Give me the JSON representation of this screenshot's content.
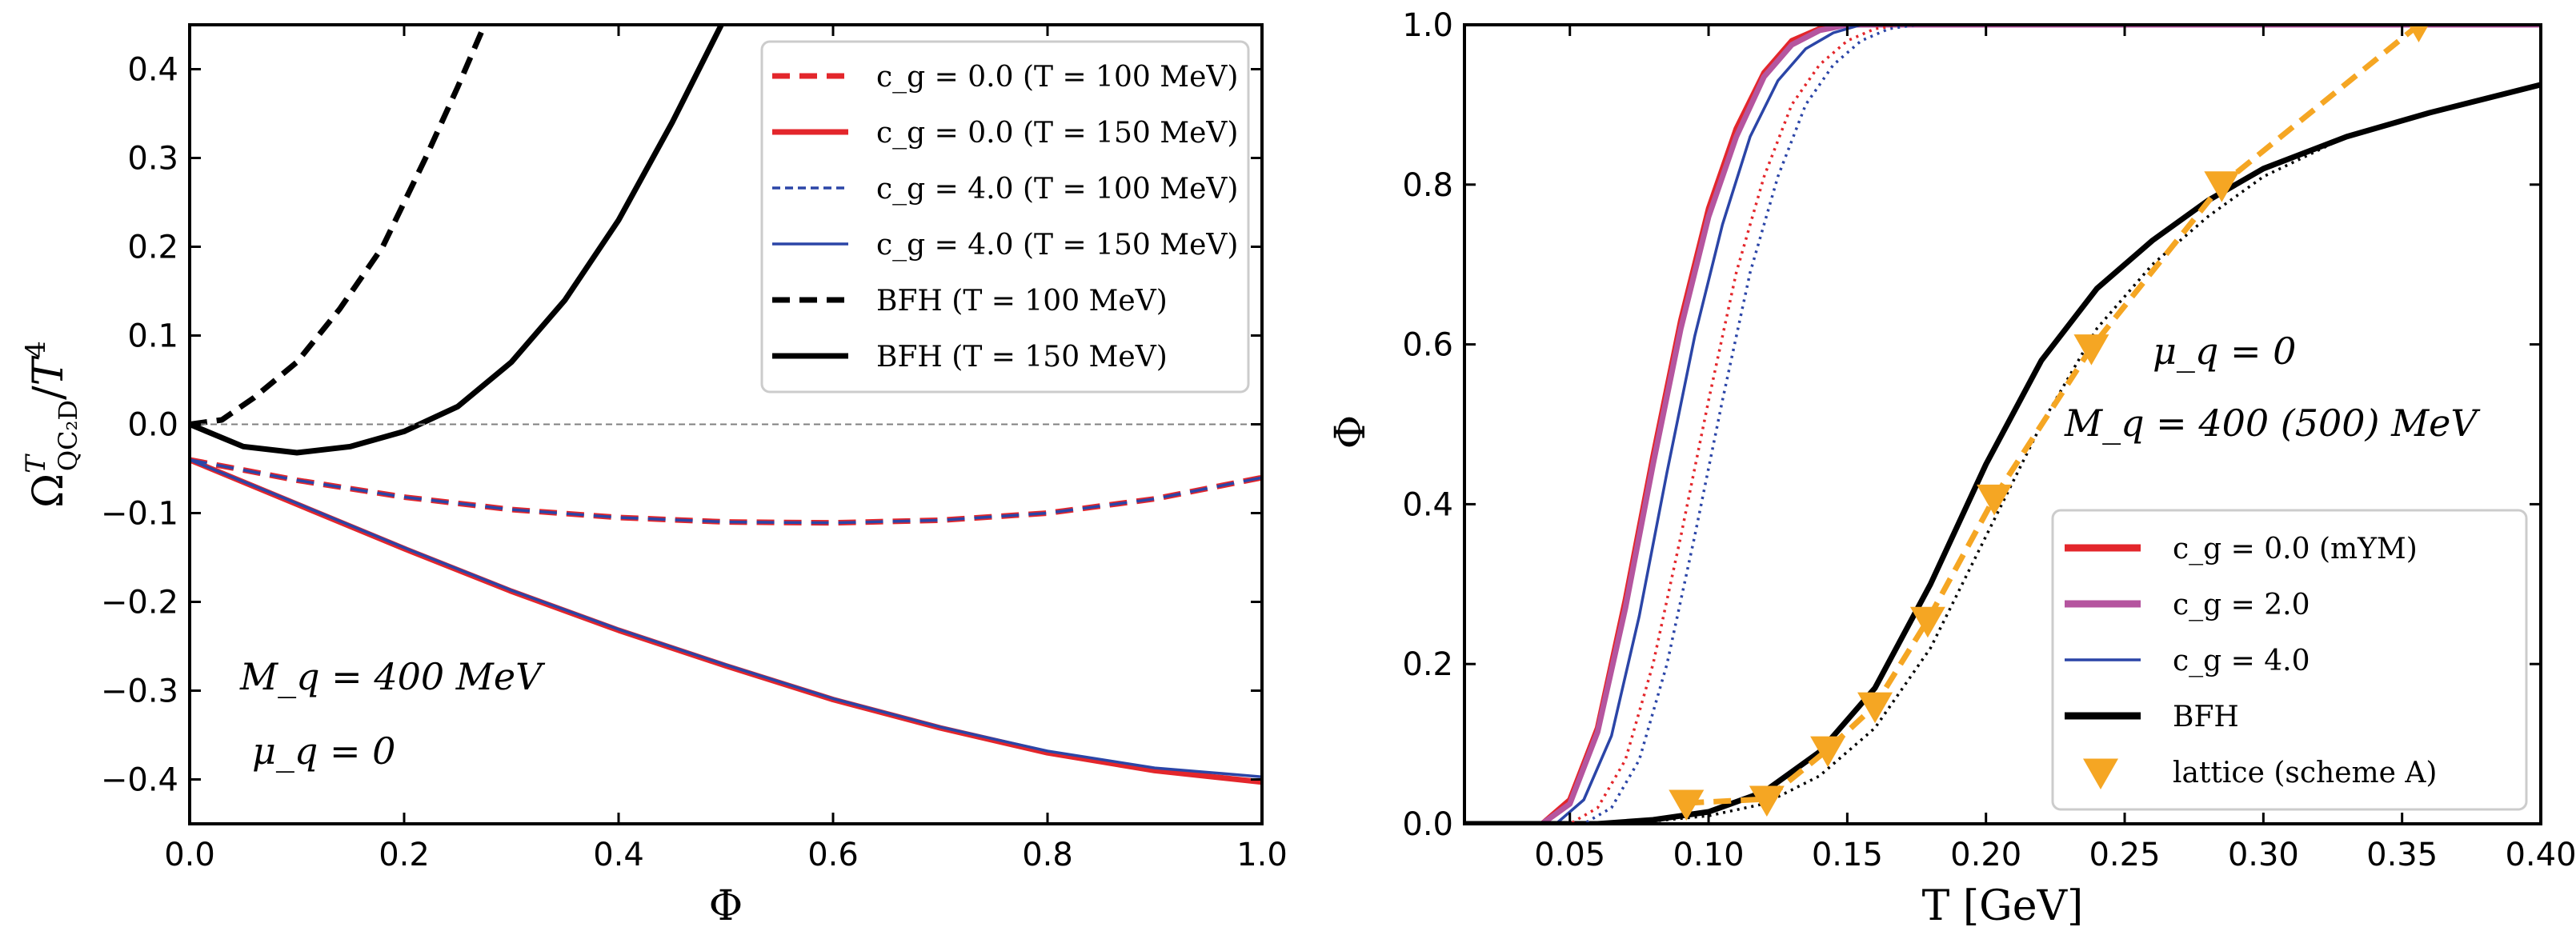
{
  "chart_data": [
    {
      "type": "line",
      "title": "",
      "xlabel": "Φ",
      "ylabel": "Ω^T_{QC₂D}/T⁴",
      "xlim": [
        0.0,
        1.0
      ],
      "ylim": [
        -0.45,
        0.45
      ],
      "xticks": [
        "0.0",
        "0.2",
        "0.4",
        "0.6",
        "0.8",
        "1.0"
      ],
      "yticks": [
        "−0.4",
        "−0.3",
        "−0.2",
        "−0.1",
        "0.0",
        "0.1",
        "0.2",
        "0.3",
        "0.4"
      ],
      "legend_position": "top-right",
      "annotations": [
        "M_q = 400 MeV",
        "μ_q = 0"
      ],
      "series": [
        {
          "name": "c_g = 0.0 (T = 100 MeV)",
          "color": "#e3262b",
          "style": "dashed",
          "x": [
            0,
            0.1,
            0.2,
            0.3,
            0.4,
            0.5,
            0.6,
            0.7,
            0.8,
            0.9,
            1.0
          ],
          "y": [
            -0.04,
            -0.063,
            -0.082,
            -0.096,
            -0.105,
            -0.11,
            -0.111,
            -0.108,
            -0.1,
            -0.084,
            -0.06
          ]
        },
        {
          "name": "c_g = 0.0 (T = 150 MeV)",
          "color": "#e3262b",
          "style": "solid",
          "x": [
            0,
            0.1,
            0.2,
            0.3,
            0.4,
            0.5,
            0.6,
            0.7,
            0.8,
            0.9,
            1.0
          ],
          "y": [
            -0.04,
            -0.09,
            -0.14,
            -0.188,
            -0.232,
            -0.272,
            -0.31,
            -0.342,
            -0.37,
            -0.39,
            -0.403
          ]
        },
        {
          "name": "c_g = 4.0 (T = 100 MeV)",
          "color": "#2b45a7",
          "style": "dashed",
          "x": [
            0,
            0.1,
            0.2,
            0.3,
            0.4,
            0.5,
            0.6,
            0.7,
            0.8,
            0.9,
            1.0
          ],
          "y": [
            -0.04,
            -0.063,
            -0.082,
            -0.096,
            -0.105,
            -0.11,
            -0.111,
            -0.108,
            -0.1,
            -0.084,
            -0.06
          ]
        },
        {
          "name": "c_g = 4.0 (T = 150 MeV)",
          "color": "#2b45a7",
          "style": "solid",
          "x": [
            0,
            0.1,
            0.2,
            0.3,
            0.4,
            0.5,
            0.6,
            0.7,
            0.8,
            0.9,
            1.0
          ],
          "y": [
            -0.04,
            -0.089,
            -0.139,
            -0.187,
            -0.231,
            -0.271,
            -0.309,
            -0.341,
            -0.368,
            -0.387,
            -0.397
          ]
        },
        {
          "name": "BFH (T = 100 MeV)",
          "color": "#000000",
          "style": "dashed",
          "x": [
            0,
            0.03,
            0.06,
            0.1,
            0.14,
            0.18,
            0.22,
            0.25,
            0.275
          ],
          "y": [
            0.0,
            0.005,
            0.03,
            0.07,
            0.13,
            0.2,
            0.3,
            0.38,
            0.45
          ]
        },
        {
          "name": "BFH (T = 150 MeV)",
          "color": "#000000",
          "style": "solid",
          "x": [
            0,
            0.05,
            0.1,
            0.15,
            0.2,
            0.25,
            0.3,
            0.35,
            0.4,
            0.45,
            0.5
          ],
          "y": [
            0.0,
            -0.025,
            -0.032,
            -0.025,
            -0.008,
            0.02,
            0.07,
            0.14,
            0.23,
            0.34,
            0.46
          ]
        },
        {
          "name": "zero line",
          "color": "#808080",
          "style": "thin-dashed",
          "legend": false,
          "x": [
            0,
            1
          ],
          "y": [
            0,
            0
          ]
        }
      ]
    },
    {
      "type": "line",
      "title": "",
      "xlabel": "T [GeV]",
      "ylabel": "Φ",
      "xlim": [
        0.012,
        0.4
      ],
      "ylim": [
        0.0,
        1.0
      ],
      "xticks": [
        "0.05",
        "0.10",
        "0.15",
        "0.20",
        "0.25",
        "0.30",
        "0.35",
        "0.40"
      ],
      "yticks": [
        "0.0",
        "0.2",
        "0.4",
        "0.6",
        "0.8",
        "1.0"
      ],
      "legend_position": "bottom-right",
      "annotations": [
        "μ_q = 0",
        "M_q = 400 (500) MeV"
      ],
      "series": [
        {
          "name": "c_g = 0.0 (mYM)",
          "color": "#e3262b",
          "style": "solid",
          "x": [
            0.012,
            0.04,
            0.05,
            0.06,
            0.07,
            0.08,
            0.09,
            0.1,
            0.11,
            0.12,
            0.13,
            0.14,
            0.15,
            0.16,
            0.4
          ],
          "y": [
            0.0,
            0.0,
            0.03,
            0.12,
            0.28,
            0.46,
            0.63,
            0.77,
            0.87,
            0.94,
            0.98,
            0.995,
            1.0,
            1.0,
            1.0
          ]
        },
        {
          "name": "c_g = 2.0",
          "color": "#b5559f",
          "style": "solid",
          "x": [
            0.012,
            0.04,
            0.05,
            0.06,
            0.07,
            0.08,
            0.09,
            0.1,
            0.11,
            0.12,
            0.13,
            0.14,
            0.15,
            0.16,
            0.4
          ],
          "y": [
            0.0,
            0.0,
            0.025,
            0.115,
            0.27,
            0.45,
            0.62,
            0.76,
            0.86,
            0.935,
            0.975,
            0.993,
            1.0,
            1.0,
            1.0
          ]
        },
        {
          "name": "c_g = 4.0",
          "color": "#2b45a7",
          "style": "solid",
          "x": [
            0.012,
            0.045,
            0.055,
            0.065,
            0.075,
            0.085,
            0.095,
            0.105,
            0.115,
            0.125,
            0.135,
            0.145,
            0.155,
            0.165,
            0.4
          ],
          "y": [
            0.0,
            0.0,
            0.03,
            0.11,
            0.26,
            0.44,
            0.61,
            0.75,
            0.86,
            0.93,
            0.97,
            0.99,
            1.0,
            1.0,
            1.0
          ]
        },
        {
          "name": "BFH",
          "color": "#000000",
          "style": "solid",
          "x": [
            0.012,
            0.06,
            0.08,
            0.1,
            0.12,
            0.14,
            0.16,
            0.18,
            0.2,
            0.22,
            0.24,
            0.26,
            0.28,
            0.3,
            0.33,
            0.36,
            0.4
          ],
          "y": [
            0.0,
            0.0,
            0.005,
            0.015,
            0.04,
            0.09,
            0.17,
            0.3,
            0.45,
            0.58,
            0.67,
            0.73,
            0.78,
            0.82,
            0.86,
            0.89,
            0.925
          ]
        },
        {
          "name": "c_g = 0.0 (M_q = 500 MeV)",
          "color": "#e3262b",
          "style": "dotted",
          "legend": false,
          "x": [
            0.012,
            0.05,
            0.06,
            0.07,
            0.08,
            0.09,
            0.1,
            0.11,
            0.12,
            0.13,
            0.14,
            0.15,
            0.16,
            0.17,
            0.18,
            0.4
          ],
          "y": [
            0.0,
            0.0,
            0.02,
            0.08,
            0.2,
            0.36,
            0.53,
            0.69,
            0.81,
            0.9,
            0.95,
            0.98,
            0.995,
            1.0,
            1.0,
            1.0
          ]
        },
        {
          "name": "c_g = 4.0 (M_q = 500 MeV)",
          "color": "#2b45a7",
          "style": "dotted",
          "legend": false,
          "x": [
            0.012,
            0.055,
            0.065,
            0.075,
            0.085,
            0.095,
            0.105,
            0.115,
            0.125,
            0.135,
            0.145,
            0.155,
            0.165,
            0.175,
            0.185,
            0.4
          ],
          "y": [
            0.0,
            0.0,
            0.02,
            0.08,
            0.2,
            0.36,
            0.53,
            0.69,
            0.81,
            0.9,
            0.95,
            0.98,
            0.995,
            1.0,
            1.0,
            1.0
          ]
        },
        {
          "name": "BFH (M_q = 500 MeV)",
          "color": "#000000",
          "style": "dotted",
          "legend": false,
          "x": [
            0.012,
            0.07,
            0.1,
            0.12,
            0.14,
            0.16,
            0.18,
            0.2,
            0.22,
            0.24,
            0.26,
            0.28,
            0.3,
            0.33,
            0.36,
            0.4
          ],
          "y": [
            0.0,
            0.0,
            0.01,
            0.025,
            0.06,
            0.12,
            0.22,
            0.36,
            0.5,
            0.62,
            0.7,
            0.76,
            0.81,
            0.86,
            0.89,
            0.925
          ]
        },
        {
          "name": "lattice (scheme A)",
          "color": "#f5a623",
          "style": "dashed-marker",
          "marker": "triangle-down",
          "x": [
            0.092,
            0.121,
            0.143,
            0.16,
            0.179,
            0.203,
            0.238,
            0.285,
            0.356
          ],
          "y": [
            0.026,
            0.031,
            0.093,
            0.148,
            0.255,
            0.408,
            0.596,
            0.8,
            1.0
          ]
        }
      ]
    }
  ]
}
